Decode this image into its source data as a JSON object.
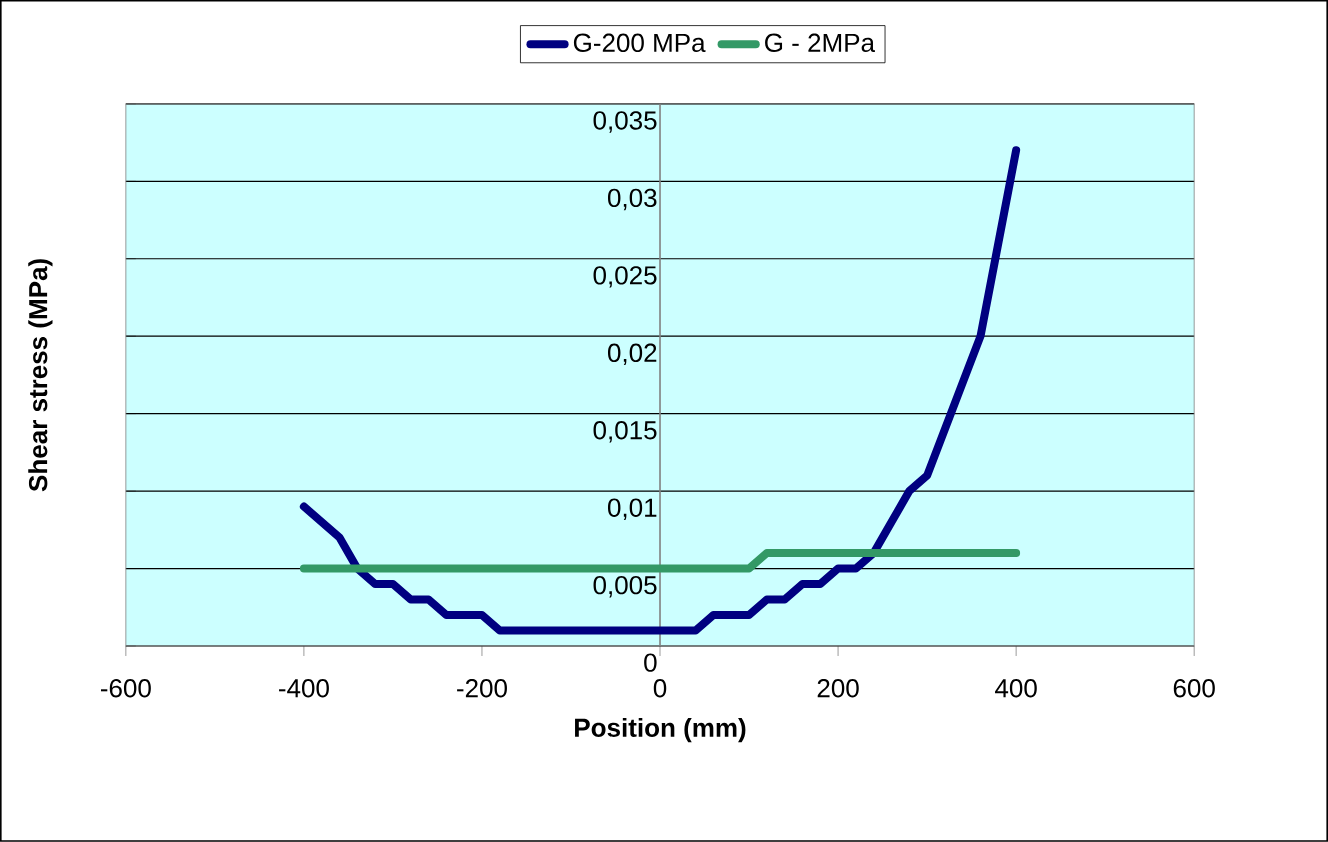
{
  "chart_data": {
    "type": "line",
    "xlabel": "Position (mm)",
    "ylabel": "Shear stress (MPa)",
    "xlim": [
      -600,
      600
    ],
    "ylim": [
      0,
      0.035
    ],
    "xticks": [
      -600,
      -400,
      -200,
      0,
      200,
      400,
      600
    ],
    "yticks": [
      0,
      {
        "value": 0.005,
        "label": "0,005"
      },
      {
        "value": 0.01,
        "label": "0,01"
      },
      {
        "value": 0.015,
        "label": "0,015"
      },
      {
        "value": 0.02,
        "label": "0,02"
      },
      {
        "value": 0.025,
        "label": "0,025"
      },
      {
        "value": 0.03,
        "label": "0,03"
      },
      {
        "value": 0.035,
        "label": "0,035"
      }
    ],
    "grid": "y",
    "legend": "top",
    "series": [
      {
        "name": "G-200 MPa",
        "color": "#000080",
        "x": [
          -400,
          -380,
          -360,
          -340,
          -320,
          -300,
          -280,
          -260,
          -240,
          -220,
          -200,
          -180,
          -160,
          -140,
          -120,
          -100,
          -80,
          -60,
          -40,
          -20,
          0,
          20,
          40,
          60,
          80,
          100,
          120,
          140,
          160,
          180,
          200,
          220,
          240,
          260,
          280,
          300,
          320,
          340,
          360,
          380,
          400
        ],
        "values": [
          0.009,
          0.008,
          0.007,
          0.005,
          0.004,
          0.004,
          0.003,
          0.003,
          0.002,
          0.002,
          0.002,
          0.001,
          0.001,
          0.001,
          0.001,
          0.001,
          0.001,
          0.001,
          0.001,
          0.001,
          0.001,
          0.001,
          0.001,
          0.002,
          0.002,
          0.002,
          0.003,
          0.003,
          0.004,
          0.004,
          0.005,
          0.005,
          0.006,
          0.008,
          0.01,
          0.011,
          0.014,
          0.017,
          0.02,
          0.026,
          0.032
        ]
      },
      {
        "name": "G - 2MPa",
        "color": "#339966",
        "x": [
          -400,
          -300,
          -200,
          -100,
          0,
          100,
          120,
          200,
          300,
          400
        ],
        "values": [
          0.005,
          0.005,
          0.005,
          0.005,
          0.005,
          0.005,
          0.006,
          0.006,
          0.006,
          0.006
        ]
      }
    ]
  }
}
